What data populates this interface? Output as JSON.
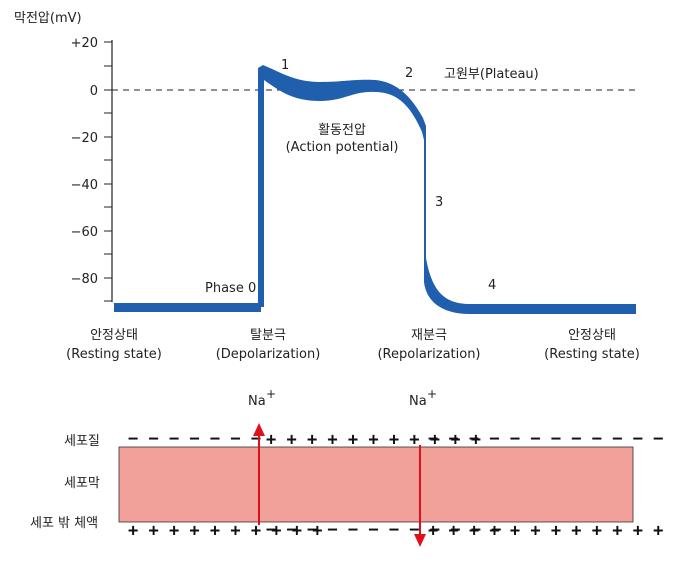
{
  "chart": {
    "y_axis_label": "막전압(mV)",
    "y_ticks": [
      "+20",
      "0",
      "−20",
      "−40",
      "−60",
      "−80"
    ],
    "plateau_label": "고원부(Plateau)",
    "action_potential_label": [
      "활동전압",
      "(Action potential)"
    ],
    "phase_labels": [
      "Phase 0",
      "1",
      "2",
      "3",
      "4"
    ],
    "line_color": "#1f5fae"
  },
  "states": [
    {
      "name": "안정상태",
      "english": "(Resting state)"
    },
    {
      "name": "탈분극",
      "english": "(Depolarization)"
    },
    {
      "name": "재분극",
      "english": "(Repolarization)"
    },
    {
      "name": "안정상태",
      "english": "(Resting state)"
    }
  ],
  "ions": {
    "left": {
      "symbol": "Na",
      "charge": "+"
    },
    "right": {
      "symbol": "Na",
      "charge": "+"
    }
  },
  "membrane": {
    "inside_label": "세포질",
    "membrane_label": "세포막",
    "outside_label": "세포 밖 체액",
    "fill_color": "#f2a19a",
    "arrow_color": "#e0101a",
    "top_signs": {
      "left": "− − − − − − −",
      "middle": "+ + + + + + + + + + +",
      "right": "− − − − − − − − − − − − − − −"
    },
    "bottom_signs": {
      "left": "+ + + + + + + + + +",
      "middle": "− − − − − − − − − − − −",
      "right": "+ + + + + + + + + + + + + + +"
    }
  }
}
